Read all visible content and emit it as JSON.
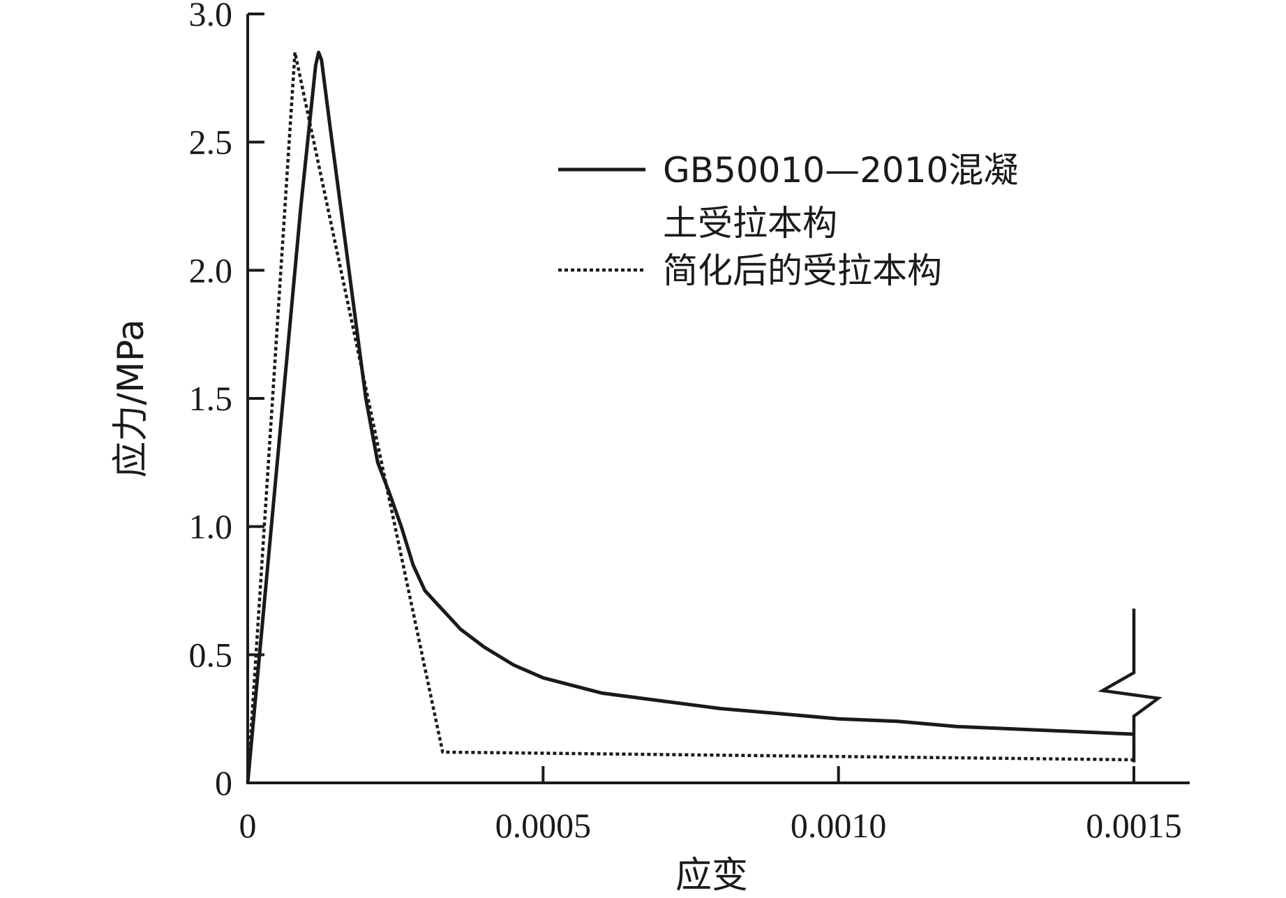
{
  "chart_data": {
    "type": "line",
    "xlabel": "应变",
    "ylabel": "应力/MPa",
    "xlim": [
      0,
      0.0015
    ],
    "ylim": [
      0,
      3.0
    ],
    "xticks": [
      {
        "value": 0,
        "label": "0"
      },
      {
        "value": 0.0005,
        "label": "0.0005"
      },
      {
        "value": 0.001,
        "label": "0.0010"
      },
      {
        "value": 0.0015,
        "label": "0.0015"
      }
    ],
    "yticks": [
      {
        "value": 0,
        "label": "0"
      },
      {
        "value": 0.5,
        "label": "0.5"
      },
      {
        "value": 1.0,
        "label": "1.0"
      },
      {
        "value": 1.5,
        "label": "1.5"
      },
      {
        "value": 2.0,
        "label": "2.0"
      },
      {
        "value": 2.5,
        "label": "2.5"
      },
      {
        "value": 3.0,
        "label": "3.0"
      }
    ],
    "grid": false,
    "legend": "top-right",
    "axis_break_x": 0.0015,
    "series": [
      {
        "name": "GB50010—2010混凝土受拉本构",
        "name_lines": [
          "GB50010—2010混凝",
          "土受拉本构"
        ],
        "style": "solid",
        "color": "#1a1a1a",
        "x": [
          0,
          3e-05,
          6e-05,
          9e-05,
          0.000115,
          0.00012,
          0.000125,
          0.00014,
          0.00016,
          0.00018,
          0.0002,
          0.00022,
          0.00024,
          0.00026,
          0.00028,
          0.0003,
          0.00032,
          0.00034,
          0.00036,
          0.0004,
          0.00045,
          0.0005,
          0.0006,
          0.0007,
          0.0008,
          0.0009,
          0.001,
          0.0011,
          0.0012,
          0.0013,
          0.0014,
          0.0015
        ],
        "y": [
          0,
          0.75,
          1.5,
          2.25,
          2.8,
          2.85,
          2.82,
          2.55,
          2.2,
          1.85,
          1.5,
          1.25,
          1.13,
          1.0,
          0.85,
          0.75,
          0.7,
          0.65,
          0.6,
          0.53,
          0.46,
          0.41,
          0.35,
          0.32,
          0.29,
          0.27,
          0.25,
          0.24,
          0.22,
          0.21,
          0.2,
          0.19
        ]
      },
      {
        "name": "简化后的受拉本构",
        "name_lines": [
          "简化后的受拉本构"
        ],
        "style": "dotted",
        "color": "#1a1a1a",
        "x": [
          0,
          8e-05,
          0.00033,
          0.0015
        ],
        "y": [
          0,
          2.85,
          0.12,
          0.09
        ]
      }
    ]
  }
}
